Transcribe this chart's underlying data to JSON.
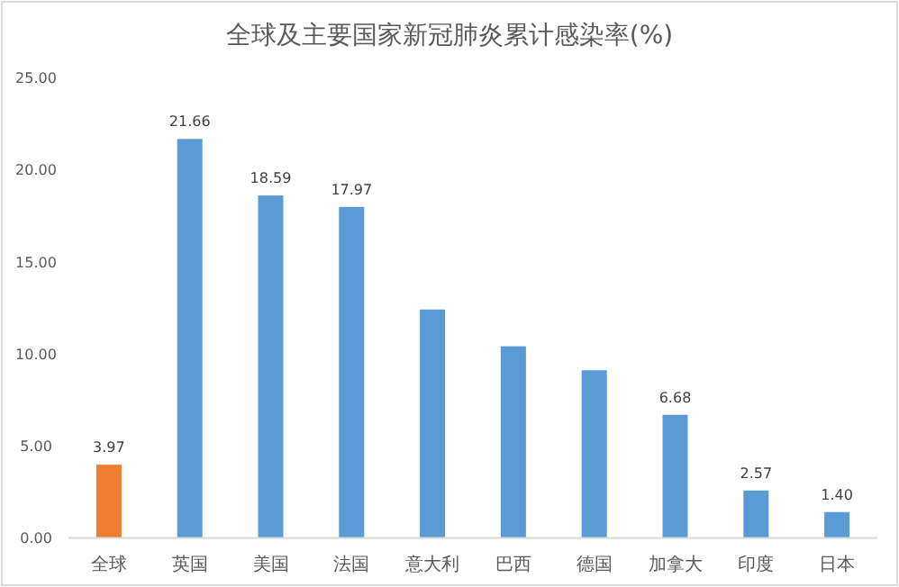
{
  "chart_data": {
    "type": "bar",
    "title": "全球及主要国家新冠肺炎累计感染率(%)",
    "categories": [
      "全球",
      "英国",
      "美国",
      "法国",
      "意大利",
      "巴西",
      "德国",
      "加拿大",
      "印度",
      "日本"
    ],
    "values": [
      3.97,
      21.66,
      18.59,
      17.97,
      12.4,
      10.4,
      9.1,
      6.68,
      2.57,
      1.4
    ],
    "value_labels": [
      "3.97",
      "21.66",
      "18.59",
      "17.97",
      null,
      null,
      null,
      "6.68",
      "2.57",
      "1.40"
    ],
    "colors": [
      "#ed7d31",
      "#5b9bd5",
      "#5b9bd5",
      "#5b9bd5",
      "#5b9bd5",
      "#5b9bd5",
      "#5b9bd5",
      "#5b9bd5",
      "#5b9bd5",
      "#5b9bd5"
    ],
    "ylim": [
      0,
      25
    ],
    "yticks": [
      {
        "value": 0,
        "label": "0.00"
      },
      {
        "value": 5,
        "label": "5.00"
      },
      {
        "value": 10,
        "label": "10.00"
      },
      {
        "value": 15,
        "label": "15.00"
      },
      {
        "value": 20,
        "label": "20.00"
      },
      {
        "value": 25,
        "label": "25.00"
      }
    ],
    "grid": false
  }
}
